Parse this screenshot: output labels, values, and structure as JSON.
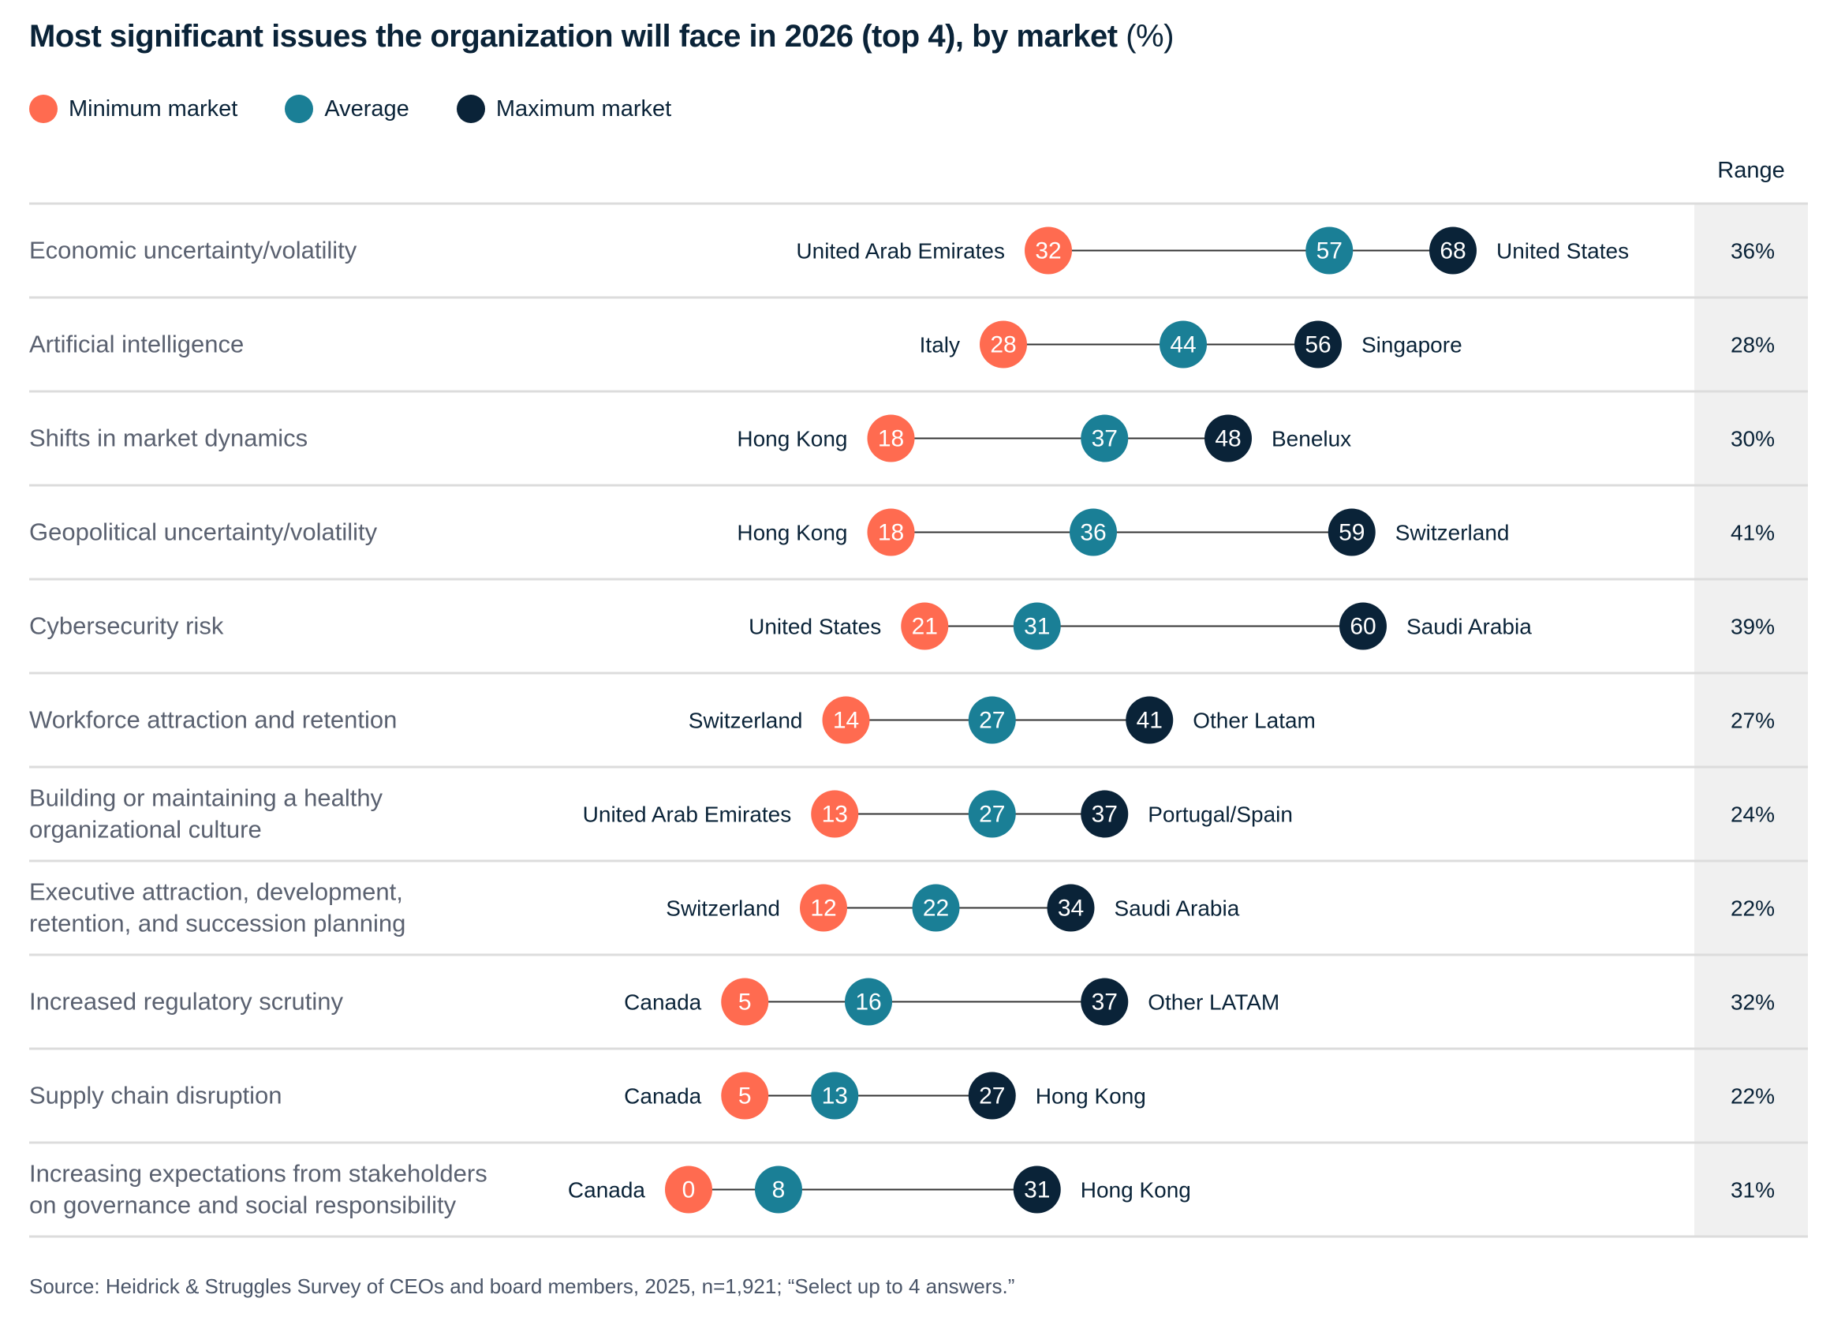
{
  "chart_data": {
    "type": "dot-range",
    "title": "Most significant issues the organization will face in 2026 (top 4), by market",
    "title_unit": "(%)",
    "legend": [
      {
        "name": "Minimum market",
        "color": "#ff6b50"
      },
      {
        "name": "Average",
        "color": "#1a7f96"
      },
      {
        "name": "Maximum market",
        "color": "#0a2338"
      }
    ],
    "legend_placement": "top-left",
    "range_header": "Range",
    "rows": [
      {
        "issue": [
          "Economic uncertainty/volatility"
        ],
        "min": 32,
        "min_market": "United Arab Emirates",
        "avg": 57,
        "max": 68,
        "max_market": "United States",
        "range": "36%"
      },
      {
        "issue": [
          "Artificial intelligence"
        ],
        "min": 28,
        "min_market": "Italy",
        "avg": 44,
        "max": 56,
        "max_market": "Singapore",
        "range": "28%"
      },
      {
        "issue": [
          "Shifts in market dynamics"
        ],
        "min": 18,
        "min_market": "Hong Kong",
        "avg": 37,
        "max": 48,
        "max_market": "Benelux",
        "range": "30%"
      },
      {
        "issue": [
          "Geopolitical uncertainty/volatility"
        ],
        "min": 18,
        "min_market": "Hong Kong",
        "avg": 36,
        "max": 59,
        "max_market": "Switzerland",
        "range": "41%"
      },
      {
        "issue": [
          "Cybersecurity risk"
        ],
        "min": 21,
        "min_market": "United States",
        "avg": 31,
        "max": 60,
        "max_market": "Saudi Arabia",
        "range": "39%"
      },
      {
        "issue": [
          "Workforce attraction and retention"
        ],
        "min": 14,
        "min_market": "Switzerland",
        "avg": 27,
        "max": 41,
        "max_market": "Other Latam",
        "range": "27%"
      },
      {
        "issue": [
          "Building or maintaining a healthy",
          "organizational culture"
        ],
        "min": 13,
        "min_market": "United Arab Emirates",
        "avg": 27,
        "max": 37,
        "max_market": "Portugal/Spain",
        "range": "24%"
      },
      {
        "issue": [
          "Executive attraction, development,",
          "retention, and succession planning"
        ],
        "min": 12,
        "min_market": "Switzerland",
        "avg": 22,
        "max": 34,
        "max_market": "Saudi Arabia",
        "range": "22%"
      },
      {
        "issue": [
          "Increased regulatory scrutiny"
        ],
        "min": 5,
        "min_market": "Canada",
        "avg": 16,
        "max": 37,
        "max_market": "Other LATAM",
        "range": "32%"
      },
      {
        "issue": [
          "Supply chain disruption"
        ],
        "min": 5,
        "min_market": "Canada",
        "avg": 13,
        "max": 27,
        "max_market": "Hong Kong",
        "range": "22%"
      },
      {
        "issue": [
          "Increasing expectations from stakeholders",
          "on governance and social responsibility"
        ],
        "min": 0,
        "min_market": "Canada",
        "avg": 8,
        "max": 31,
        "max_market": "Hong Kong",
        "range": "31%"
      }
    ]
  },
  "source": "Source: Heidrick & Struggles Survey of CEOs and board members, 2025, n=1,921; “Select up to 4 answers.”"
}
